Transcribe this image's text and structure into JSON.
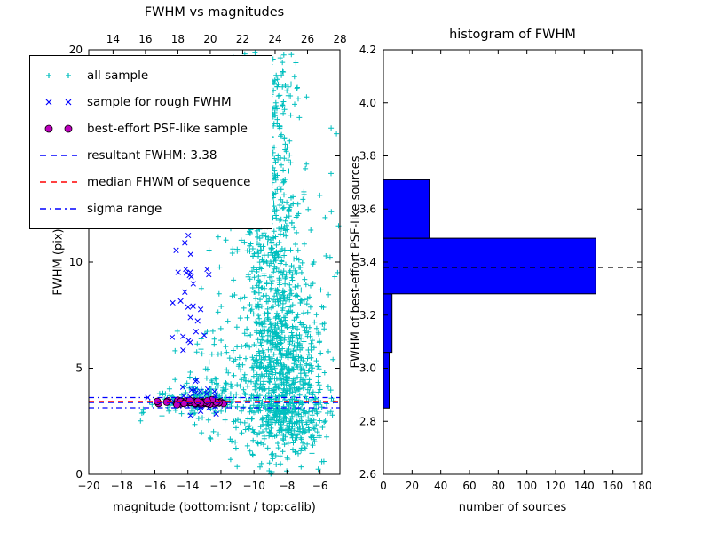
{
  "chart_data": [
    {
      "type": "scatter",
      "title": "FWHM vs magnitudes",
      "xlabel": "magnitude (bottom:isnt / top:calib)",
      "ylabel": "FWHM (pix)",
      "xlim": [
        -20,
        -4.8
      ],
      "x_top_lim": [
        12.5,
        28.0
      ],
      "ylim": [
        0,
        20
      ],
      "x_ticks_bottom": {
        "values": [
          -20,
          -18,
          -16,
          -14,
          -12,
          -10,
          -8,
          -6
        ],
        "labels": [
          "−20",
          "−18",
          "−16",
          "−14",
          "−12",
          "−10",
          "−8",
          "−6"
        ]
      },
      "x_ticks_top": {
        "values": [
          14,
          16,
          18,
          20,
          22,
          24,
          26,
          28
        ],
        "labels": [
          "14",
          "16",
          "18",
          "20",
          "22",
          "24",
          "26",
          "28"
        ]
      },
      "y_ticks": {
        "values": [
          0,
          5,
          10,
          15,
          20
        ],
        "labels": [
          "0",
          "5",
          "10",
          "15",
          "20"
        ]
      },
      "legend_position": "upper left",
      "series": [
        {
          "name": "all sample",
          "marker": "plus",
          "color": "#00bfbf",
          "clusters": [
            [
              -8.3,
              5.2,
              1.1,
              2.3,
              620
            ],
            [
              -9.0,
              11.2,
              0.9,
              2.4,
              300
            ],
            [
              -9.3,
              17.2,
              0.9,
              1.7,
              190
            ],
            [
              -8.0,
              2.8,
              1.4,
              0.9,
              240
            ],
            [
              -13.5,
              3.5,
              1.5,
              0.45,
              130
            ],
            [
              -11.3,
              4.2,
              1.3,
              1.5,
              90
            ],
            [
              -9.3,
              8.5,
              2.4,
              4.8,
              160
            ]
          ]
        },
        {
          "name": "sample for rough FWHM",
          "marker": "x",
          "color": "#0000ff",
          "clusters": [
            [
              -13.9,
              8.6,
              0.5,
              1.5,
              26
            ],
            [
              -13.5,
              3.8,
              0.9,
              0.5,
              26
            ],
            [
              -13.95,
              11.3,
              0.35,
              0.5,
              5
            ]
          ]
        },
        {
          "name": "best-effort PSF-like sample",
          "marker": "circle",
          "color": "#bf00bf",
          "edge_color": "#000000",
          "clusters": [
            [
              -13.4,
              3.38,
              0.85,
              0.05,
              46
            ]
          ]
        }
      ],
      "lines": [
        {
          "label": "resultant FWHM: 3.38",
          "y": 3.38,
          "color": "#0000ff",
          "style": "dashed"
        },
        {
          "label": "median FHWM of sequence",
          "y": 3.44,
          "color": "#ff0000",
          "style": "dashed"
        },
        {
          "label": "sigma range",
          "y": 3.62,
          "color": "#0000ff",
          "style": "dashdot"
        },
        {
          "label": "sigma range",
          "y": 3.14,
          "color": "#0000ff",
          "style": "dashdot"
        }
      ],
      "legend": [
        {
          "label": "all sample",
          "marker": "plus",
          "color": "#00bfbf"
        },
        {
          "label": "sample for rough FWHM",
          "marker": "x",
          "color": "#0000ff"
        },
        {
          "label": "best-effort PSF-like sample",
          "marker": "circle",
          "color": "#bf00bf"
        },
        {
          "label": "resultant FWHM: 3.38",
          "marker": "dashed-line",
          "color": "#0000ff"
        },
        {
          "label": "median FHWM of sequence",
          "marker": "dashed-line",
          "color": "#ff0000"
        },
        {
          "label": "sigma range",
          "marker": "dashdot-line",
          "color": "#0000ff"
        }
      ]
    },
    {
      "type": "bar",
      "orientation": "horizontal",
      "title": "histogram of FWHM",
      "xlabel": "number of sources",
      "ylabel": "FWHM of best-effort PSF-like sources",
      "xlim": [
        0,
        180
      ],
      "ylim": [
        2.6,
        4.2
      ],
      "x_ticks": {
        "values": [
          0,
          20,
          40,
          60,
          80,
          100,
          120,
          140,
          160,
          180
        ],
        "labels": [
          "0",
          "20",
          "40",
          "60",
          "80",
          "100",
          "120",
          "140",
          "160",
          "180"
        ]
      },
      "y_ticks": {
        "values": [
          2.6,
          2.8,
          3.0,
          3.2,
          3.4,
          3.6,
          3.8,
          4.0,
          4.2
        ],
        "labels": [
          "2.6",
          "2.8",
          "3.0",
          "3.2",
          "3.4",
          "3.6",
          "3.8",
          "4.0",
          "4.2"
        ]
      },
      "bin_edges": [
        2.85,
        3.06,
        3.28,
        3.49,
        3.71
      ],
      "counts": [
        4,
        6,
        148,
        32
      ],
      "bar_color": "#0000ff",
      "bar_edge_color": "#000000",
      "median_line": {
        "y": 3.38,
        "color": "#000000",
        "style": "dashed"
      }
    }
  ]
}
